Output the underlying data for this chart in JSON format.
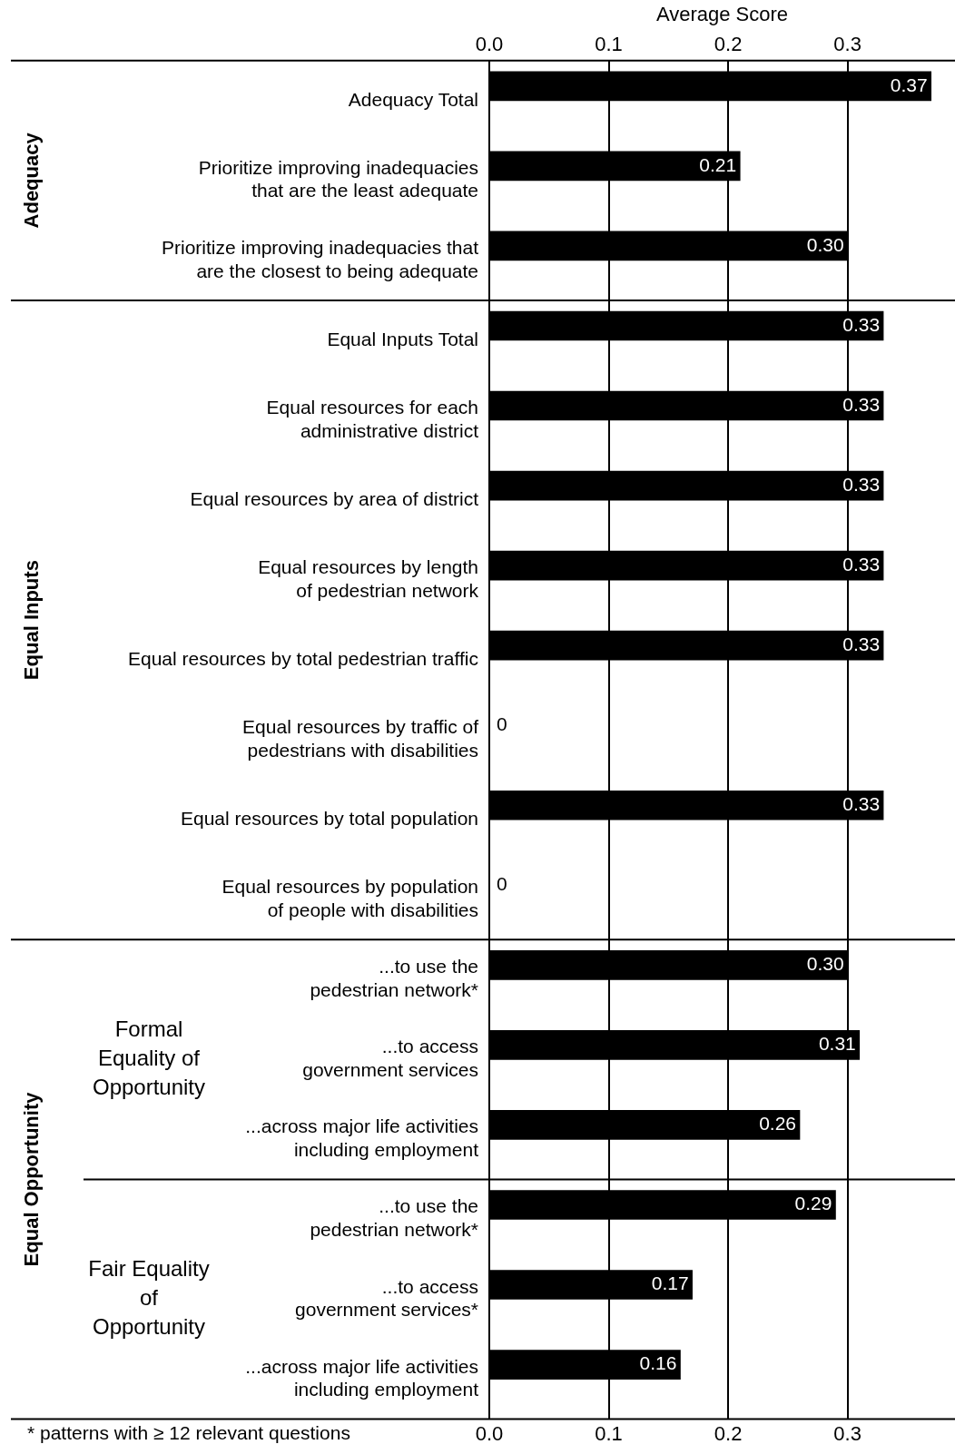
{
  "chart_data": {
    "type": "bar",
    "orientation": "horizontal",
    "x2label": "Average Score",
    "categories": [
      "Adequacy Total",
      "Prioritize improving inadequacies that are the least adequate",
      "Prioritize improving inadequacies that are the closest to being adequate",
      "Equal Inputs Total",
      "Equal resources for each administrative district",
      "Equal resources by area of district",
      "Equal resources by length of pedestrian network",
      "Equal resources by total pedestrian traffic",
      "Equal resources by traffic of pedestrians with disabilities",
      "Equal resources by total population",
      "Equal resources by population of people with disabilities",
      "...to use the pedestrian network*",
      "...to access government services",
      "...across major life activities including employment",
      "...to use the pedestrian network*",
      "...to access government services*",
      "...across major life activities including employment"
    ],
    "values": [
      0.37,
      0.21,
      0.3,
      0.33,
      0.33,
      0.33,
      0.33,
      0.33,
      0,
      0.33,
      0,
      0.3,
      0.31,
      0.26,
      0.29,
      0.17,
      0.16
    ],
    "value_labels": [
      "0.37",
      "0.21",
      "0.30",
      "0.33",
      "0.33",
      "0.33",
      "0.33",
      "0.33",
      "0",
      "0.33",
      "0",
      "0.30",
      "0.31",
      "0.26",
      "0.29",
      "0.17",
      "0.16"
    ],
    "color": "#000000",
    "xlim": [
      0,
      0.39
    ],
    "xticks": [
      {
        "value": 0,
        "label": "0.0"
      },
      {
        "value": 0.1,
        "label": "0.1"
      },
      {
        "value": 0.2,
        "label": "0.2"
      },
      {
        "value": 0.3,
        "label": "0.3"
      }
    ],
    "x2lim": [
      0,
      0.39
    ],
    "x2ticks": [
      {
        "value": 0,
        "label": "0.0"
      },
      {
        "value": 0.1,
        "label": "0.1"
      },
      {
        "value": 0.2,
        "label": "0.2"
      },
      {
        "value": 0.3,
        "label": "0.3"
      }
    ],
    "grid": "x",
    "legend": false,
    "annotations": [
      "Adequacy",
      "Equal Inputs",
      "Equal Opportunity",
      "Formal Equality of Opportunity",
      "Fair Equality of Opportunity",
      "* patterns with ≥ 12 relevant questions"
    ]
  }
}
